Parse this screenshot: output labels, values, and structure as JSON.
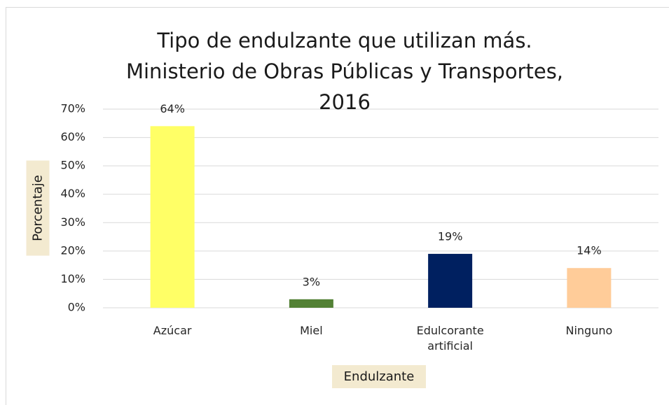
{
  "chart_data": {
    "type": "bar",
    "title": "Tipo de endulzante que utilizan más. Ministerio de Obras Públicas y Transportes, 2016",
    "x_label": "Endulzante",
    "y_label": "Porcentaje",
    "categories": [
      "Azúcar",
      "Miel",
      "Edulcorante artificial",
      "Ninguno"
    ],
    "values": [
      64,
      3,
      19,
      14
    ],
    "value_labels": [
      "64%",
      "3%",
      "19%",
      "14%"
    ],
    "colors": [
      "#ffff66",
      "#538135",
      "#002060",
      "#ffcc99"
    ],
    "ylim": [
      0,
      70
    ],
    "yticks": [
      {
        "value": 0,
        "label": "0%"
      },
      {
        "value": 10,
        "label": "10%"
      },
      {
        "value": 20,
        "label": "20%"
      },
      {
        "value": 30,
        "label": "30%"
      },
      {
        "value": 40,
        "label": "40%"
      },
      {
        "value": 50,
        "label": "50%"
      },
      {
        "value": 60,
        "label": "60%"
      },
      {
        "value": 70,
        "label": "70%"
      }
    ],
    "grid": true
  }
}
